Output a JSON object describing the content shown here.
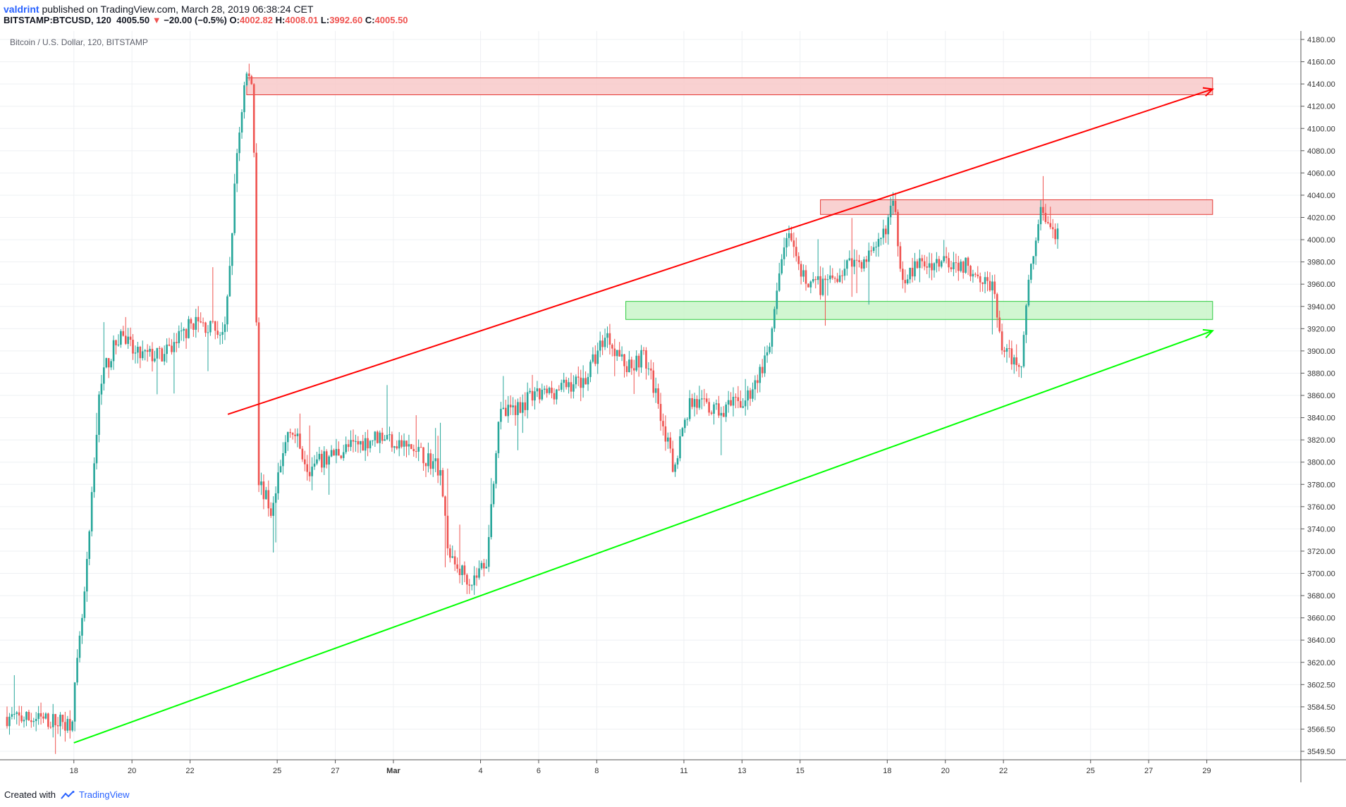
{
  "header": {
    "author": "valdrint",
    "published_text": "published on TradingView.com, March 28, 2019 06:38:24 CET",
    "symbol": "BITSTAMP:BTCUSD, 120",
    "last": "4005.50",
    "change_arrow": "▼",
    "change": "−20.00 (−0.5%)",
    "o_label": "O:",
    "o_value": "4002.82",
    "h_label": "H:",
    "h_value": "4008.01",
    "l_label": "L:",
    "l_value": "3992.60",
    "c_label": "C:",
    "c_value": "4005.50"
  },
  "footer": {
    "created_with": "Created with",
    "brand": "TradingView"
  },
  "colors": {
    "up": "#26a69a",
    "down": "#ef5350",
    "resistance_line": "#ff0000",
    "support_line": "#00ff00",
    "resistance_zone_fill": "#f8c9c9",
    "resistance_zone_stroke": "#e53935",
    "support_zone_fill": "#c9f5c9",
    "support_zone_stroke": "#2ecc40",
    "grid": "#eef0f3"
  },
  "chart_data": {
    "type": "candlestick",
    "title": "Bitcoin / U.S. Dollar, 120, BITSTAMP",
    "y_ticks": [
      "4180.00",
      "4160.00",
      "4140.00",
      "4120.00",
      "4100.00",
      "4080.00",
      "4060.00",
      "4040.00",
      "4020.00",
      "4000.00",
      "3980.00",
      "3960.00",
      "3940.00",
      "3920.00",
      "3900.00",
      "3880.00",
      "3860.00",
      "3840.00",
      "3820.00",
      "3800.00",
      "3780.00",
      "3760.00",
      "3740.00",
      "3720.00",
      "3700.00",
      "3680.00",
      "3660.00",
      "3640.00",
      "3620.00",
      "3602.50",
      "3584.50",
      "3566.50",
      "3549.50"
    ],
    "x_ticks": [
      "18",
      "20",
      "22",
      "25",
      "27",
      "Mar",
      "4",
      "6",
      "8",
      "11",
      "13",
      "15",
      "18",
      "20",
      "22",
      "25",
      "27",
      "29"
    ],
    "anchors": [
      {
        "d": 0,
        "p": 3580
      },
      {
        "d": 2.3,
        "p": 3575
      },
      {
        "d": 2.8,
        "p": 3700
      },
      {
        "d": 3.3,
        "p": 3880
      },
      {
        "d": 4.0,
        "p": 3920
      },
      {
        "d": 4.5,
        "p": 3900
      },
      {
        "d": 5.5,
        "p": 3900
      },
      {
        "d": 6.5,
        "p": 3930
      },
      {
        "d": 7.6,
        "p": 3920
      },
      {
        "d": 8.0,
        "p": 4080
      },
      {
        "d": 8.3,
        "p": 4150
      },
      {
        "d": 8.55,
        "p": 4140
      },
      {
        "d": 8.75,
        "p": 3790
      },
      {
        "d": 9.2,
        "p": 3760
      },
      {
        "d": 9.8,
        "p": 3840
      },
      {
        "d": 10.5,
        "p": 3800
      },
      {
        "d": 11.5,
        "p": 3815
      },
      {
        "d": 13.0,
        "p": 3830
      },
      {
        "d": 14.5,
        "p": 3810
      },
      {
        "d": 15.0,
        "p": 3800
      },
      {
        "d": 15.3,
        "p": 3720
      },
      {
        "d": 16.1,
        "p": 3700
      },
      {
        "d": 16.6,
        "p": 3720
      },
      {
        "d": 17.0,
        "p": 3845
      },
      {
        "d": 18.0,
        "p": 3860
      },
      {
        "d": 19.0,
        "p": 3870
      },
      {
        "d": 20.0,
        "p": 3880
      },
      {
        "d": 20.7,
        "p": 3920
      },
      {
        "d": 21.4,
        "p": 3890
      },
      {
        "d": 22.0,
        "p": 3900
      },
      {
        "d": 22.5,
        "p": 3860
      },
      {
        "d": 23.0,
        "p": 3800
      },
      {
        "d": 23.6,
        "p": 3860
      },
      {
        "d": 24.5,
        "p": 3850
      },
      {
        "d": 25.5,
        "p": 3860
      },
      {
        "d": 26.3,
        "p": 3900
      },
      {
        "d": 26.9,
        "p": 4010
      },
      {
        "d": 27.4,
        "p": 3970
      },
      {
        "d": 28.2,
        "p": 3960
      },
      {
        "d": 29.0,
        "p": 3980
      },
      {
        "d": 30.0,
        "p": 3990
      },
      {
        "d": 30.6,
        "p": 4035
      },
      {
        "d": 30.9,
        "p": 3970
      },
      {
        "d": 31.5,
        "p": 3980
      },
      {
        "d": 32.5,
        "p": 3985
      },
      {
        "d": 33.5,
        "p": 3975
      },
      {
        "d": 34.0,
        "p": 3960
      },
      {
        "d": 34.4,
        "p": 3900
      },
      {
        "d": 35.0,
        "p": 3895
      },
      {
        "d": 35.3,
        "p": 3980
      },
      {
        "d": 35.7,
        "p": 4030
      },
      {
        "d": 36.2,
        "p": 4005
      }
    ],
    "resistance_line": {
      "start": {
        "d": 7.6,
        "p": 3848
      },
      "end": {
        "d": 41.5,
        "p": 4136
      }
    },
    "support_line": {
      "start": {
        "d": 2.3,
        "p": 3557
      },
      "end": {
        "d": 41.5,
        "p": 3922
      }
    },
    "zones": [
      {
        "name": "resistance-zone-top",
        "d0": 8.25,
        "d1": 41.5,
        "p0": 4146,
        "p1": 4131
      },
      {
        "name": "resistance-zone-mid",
        "d0": 28.0,
        "d1": 41.5,
        "p0": 4038,
        "p1": 4025
      },
      {
        "name": "support-zone",
        "d0": 21.3,
        "d1": 41.5,
        "p0": 3948,
        "p1": 3932
      }
    ],
    "xlabel": "",
    "ylabel": "",
    "ylim": [
      3540,
      4187
    ]
  }
}
